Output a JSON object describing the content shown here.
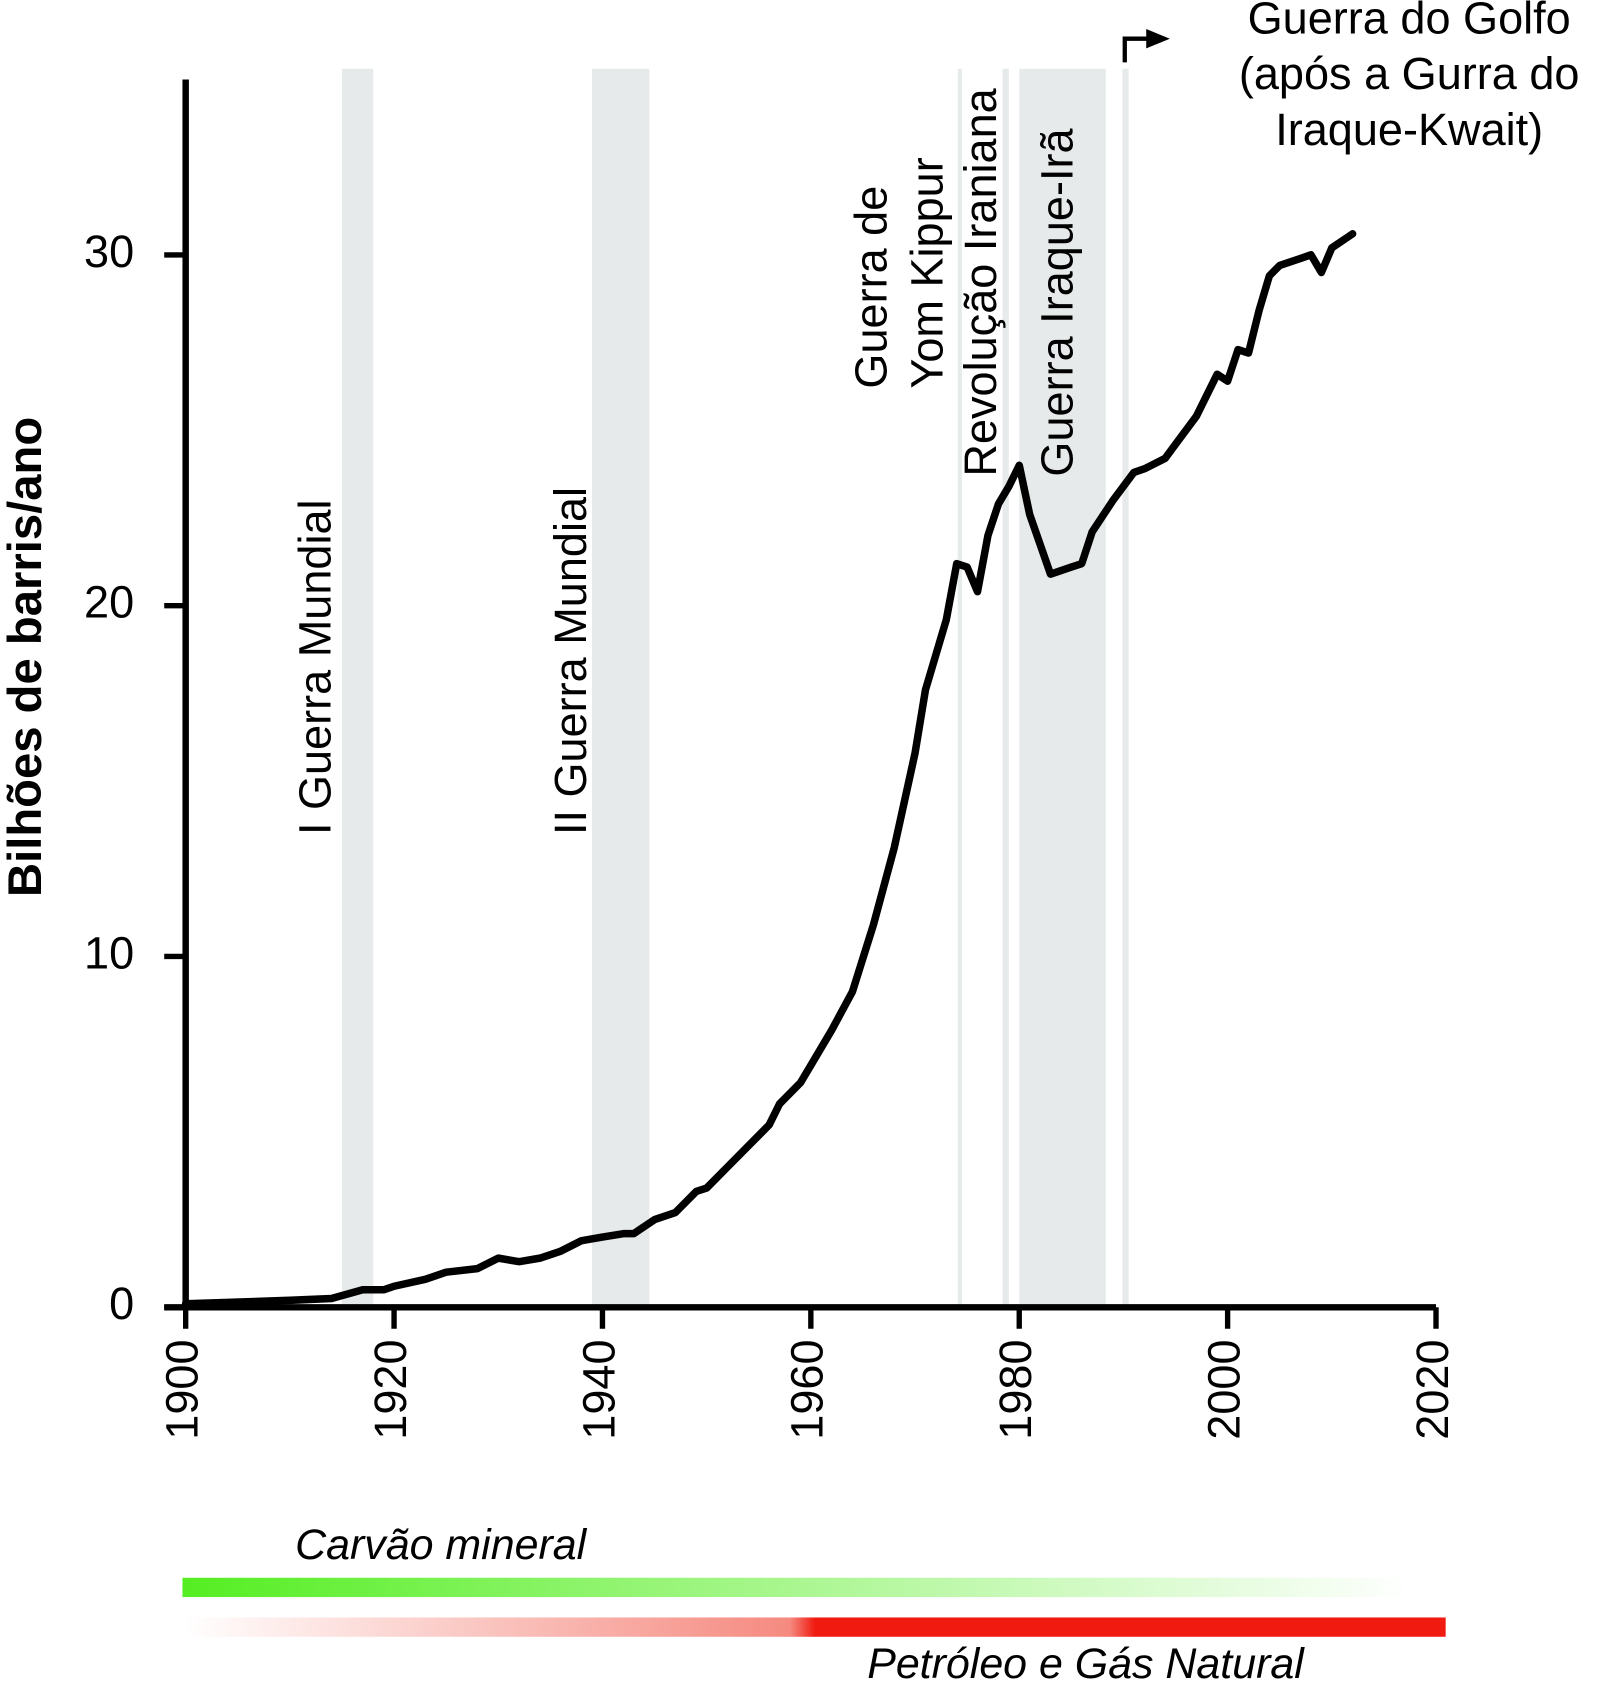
{
  "chart_data": {
    "type": "line",
    "y_label": "Bilhões de barris/ano",
    "xlim": [
      1900,
      2020
    ],
    "xticks": [
      1900,
      1920,
      1940,
      1960,
      1980,
      2000,
      2020
    ],
    "ylim": [
      0,
      35
    ],
    "yticks": [
      0,
      10,
      20,
      30
    ],
    "color": "#000000",
    "x": [
      1900,
      1910,
      1914,
      1917,
      1919,
      1920,
      1923,
      1925,
      1928,
      1930,
      1932,
      1934,
      1936,
      1938,
      1940,
      1942,
      1943,
      1945,
      1947,
      1949,
      1950,
      1952,
      1954,
      1956,
      1957,
      1959,
      1960,
      1962,
      1964,
      1966,
      1968,
      1970,
      1971,
      1973,
      1974,
      1975,
      1976,
      1977,
      1978,
      1979,
      1980,
      1981,
      1983,
      1985,
      1986,
      1987,
      1989,
      1991,
      1992,
      1994,
      1995,
      1997,
      1999,
      2000,
      2001,
      2002,
      2003,
      2004,
      2005,
      2007,
      2008,
      2009,
      2010,
      2012
    ],
    "values": [
      0.1,
      0.2,
      0.25,
      0.5,
      0.5,
      0.6,
      0.8,
      1.0,
      1.1,
      1.4,
      1.3,
      1.4,
      1.6,
      1.9,
      2.0,
      2.1,
      2.1,
      2.5,
      2.7,
      3.3,
      3.4,
      4.0,
      4.6,
      5.2,
      5.8,
      6.4,
      6.9,
      7.9,
      9.0,
      10.9,
      13.1,
      15.8,
      17.6,
      19.6,
      21.2,
      21.1,
      20.4,
      22.0,
      22.9,
      23.4,
      24.0,
      22.6,
      20.9,
      21.1,
      21.2,
      22.1,
      23.0,
      23.8,
      23.9,
      24.2,
      24.6,
      25.4,
      26.6,
      26.4,
      27.3,
      27.2,
      28.4,
      29.4,
      29.7,
      29.9,
      30.0,
      29.5,
      30.2,
      30.6
    ],
    "events": [
      {
        "lines": [
          "I Guerra Mundial"
        ],
        "start": 1915,
        "end": 1918
      },
      {
        "lines": [
          "II Guerra Mundial"
        ],
        "start": 1939,
        "end": 1944.5
      },
      {
        "lines": [
          "Guerra de",
          "Yom Kippur"
        ],
        "start": 1974.1,
        "end": 1974.5
      },
      {
        "lines": [
          "Revolução Iraniana"
        ],
        "start": 1978.4,
        "end": 1979
      },
      {
        "lines": [
          "Guerra Iraque-Irã"
        ],
        "start": 1980,
        "end": 1988.3
      },
      {
        "lines": [
          "Guerra do Golfo",
          "(após a Gurra do",
          "Iraque-Kwait)"
        ],
        "start": 1989.9,
        "end": 1990.5
      }
    ],
    "band_color": "#e6eaea",
    "sources": [
      {
        "name": "Carvão mineral",
        "color": "#66dd22"
      },
      {
        "name": "Petróleo e Gás Natural",
        "color": "#ee1111"
      }
    ]
  }
}
